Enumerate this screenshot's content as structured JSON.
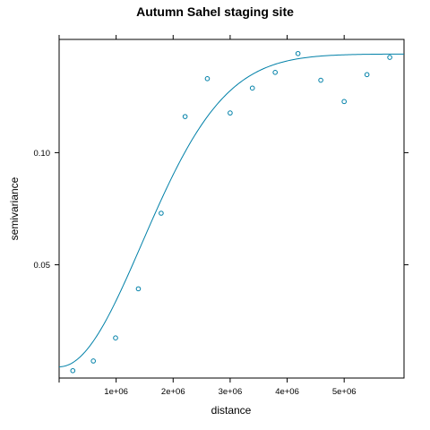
{
  "chart_data": {
    "type": "scatter",
    "title": "Autumn Sahel staging site",
    "xlabel": "distance",
    "ylabel": "semivariance",
    "xlim": [
      0,
      6050000
    ],
    "ylim": [
      -0.0005,
      0.1505
    ],
    "x_ticks": [
      {
        "value": 1000000,
        "label": "1e+06"
      },
      {
        "value": 2000000,
        "label": "2e+06"
      },
      {
        "value": 3000000,
        "label": "3e+06"
      },
      {
        "value": 4000000,
        "label": "4e+06"
      },
      {
        "value": 5000000,
        "label": "5e+06"
      }
    ],
    "y_ticks": [
      {
        "value": 0.05,
        "label": "0.05"
      },
      {
        "value": 0.1,
        "label": "0.10"
      }
    ],
    "color": "#0080a8",
    "points": {
      "x": [
        240000,
        600000,
        990000,
        1390000,
        1790000,
        2210000,
        2600000,
        3000000,
        3390000,
        3790000,
        4190000,
        4590000,
        5000000,
        5400000,
        5800000
      ],
      "y": [
        0.0028,
        0.0071,
        0.0174,
        0.0393,
        0.073,
        0.1161,
        0.133,
        0.1177,
        0.1288,
        0.1358,
        0.1442,
        0.1323,
        0.1228,
        0.1348,
        0.1425
      ]
    },
    "fitted_model": {
      "type": "gaussian",
      "nugget": 0.0045,
      "partial_sill": 0.1395,
      "range": 2050000
    }
  }
}
